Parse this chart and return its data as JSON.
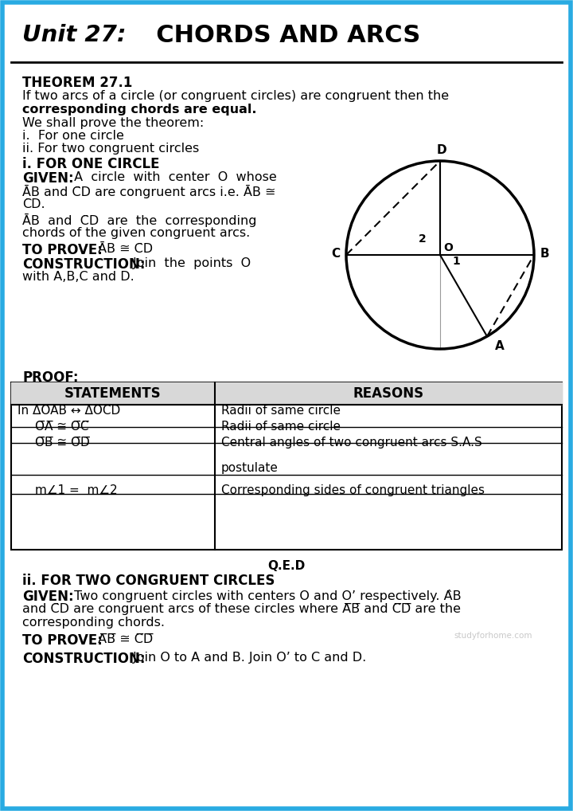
{
  "title_unit": "Unit 27:",
  "title_main": "  CHORDS AND ARCS",
  "bg_color": "#ffffff",
  "border_color": "#29abe2",
  "theorem_title": "THEOREM 27.1",
  "line1": "If two arcs of a circle (or congruent circles) are congruent then the",
  "line2": "corresponding chords are equal.",
  "line3": "We shall prove the theorem:",
  "line4": "i.  For one circle",
  "line5": "ii. For two congruent circles",
  "sec1_title": "i. FOR ONE CIRCLE",
  "given_bold": "GIVEN:",
  "given_rest1": " A  circle  with  center  O  whose",
  "given_line2": "ĀB and C̄D are congruent arcs i.e. ĀB ≅",
  "given_line3": "C̄D.",
  "given_line4": "ĀB  and  C̄D  are  the  corresponding",
  "given_line5": "chords of the given congruent arcs.",
  "toprove_bold": "TO PROVE:",
  "toprove_rest": " ĀB ≅ C̄D",
  "constr_bold": "CONSTRUCTION:",
  "constr_rest1": " Join  the  points  O",
  "constr_rest2": "with A,B,C and D.",
  "proof_bold": "PROOF:",
  "th1": "STATEMENTS",
  "th2": "REASONS",
  "tr1l": "In ΔOAB ↔ ΔOCD",
  "tr1r": "Radii of same circle",
  "tr2l": "O̅A̅ ≅ O̅C̅",
  "tr2r": "Radii of same circle",
  "tr3l": "O̅B̅ ≅ O̅D̅",
  "tr3r": "Central angles of two congruent arcs S.A.S",
  "tr3r2": "postulate",
  "tr4l": "m∠1 =  m∠2",
  "tr4r": "Corresponding sides of congruent triangles",
  "qed": "Q.E.D",
  "sec2_title": "ii. FOR TWO CONGRUENT CIRCLES",
  "given2_bold": "GIVEN:",
  "given2_rest1": " Two congruent circles with centers O and O’ respectively. ÂB",
  "given2_line2": "and C̄D are congruent arcs of these circles where A̅B̅ and C̅D̅ are the",
  "given2_line3": "corresponding chords.",
  "tp2_bold": "TO PROVE:",
  "tp2_rest": " A̅B̅ ≅ C̅D̅",
  "c2_bold": "CONSTRUCTION:",
  "c2_rest": " Join O to A and B. Join O’ to C and D.",
  "watermark": "studyforhome.com"
}
